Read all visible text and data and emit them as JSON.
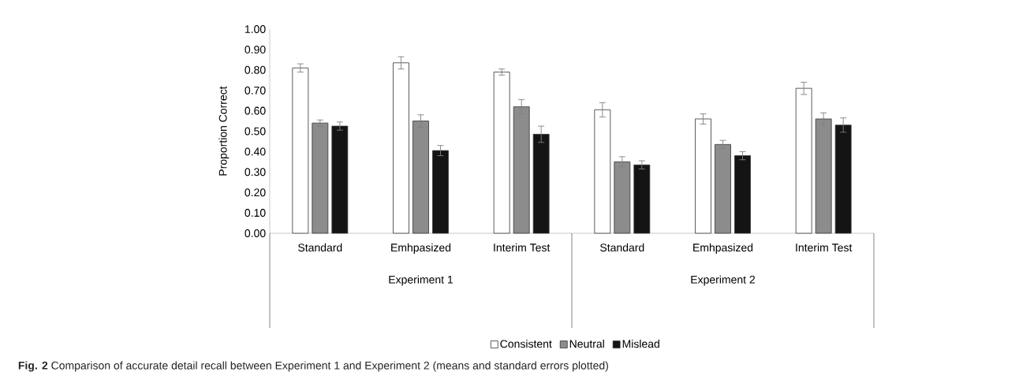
{
  "chart_data": {
    "type": "bar",
    "ylabel": "Proportion Correct",
    "categories": [
      "Standard",
      "Emhpasized",
      "Interim Test",
      "Standard",
      "Emhpasized",
      "Interim Test"
    ],
    "series": [
      {
        "name": "Consistent",
        "color": "#ffffff",
        "values": [
          0.81,
          0.835,
          0.79,
          0.605,
          0.56,
          0.71
        ],
        "errors": [
          0.02,
          0.03,
          0.015,
          0.035,
          0.025,
          0.03
        ]
      },
      {
        "name": "Neutral",
        "color": "#8c8c8c",
        "values": [
          0.54,
          0.55,
          0.62,
          0.35,
          0.435,
          0.56
        ],
        "errors": [
          0.015,
          0.03,
          0.035,
          0.025,
          0.02,
          0.03
        ]
      },
      {
        "name": "Mislead",
        "color": "#141414",
        "values": [
          0.525,
          0.405,
          0.485,
          0.335,
          0.38,
          0.53
        ],
        "errors": [
          0.02,
          0.025,
          0.04,
          0.02,
          0.02,
          0.035
        ]
      }
    ],
    "ylim": [
      0,
      1
    ],
    "yticks": [
      {
        "value": 0,
        "label": "0.00"
      },
      {
        "value": 0.1,
        "label": "0.10"
      },
      {
        "value": 0.2,
        "label": "0.20"
      },
      {
        "value": 0.3,
        "label": "0.30"
      },
      {
        "value": 0.4,
        "label": "0.40"
      },
      {
        "value": 0.5,
        "label": "0.50"
      },
      {
        "value": 0.6,
        "label": "0.60"
      },
      {
        "value": 0.7,
        "label": "0.70"
      },
      {
        "value": 0.8,
        "label": "0.80"
      },
      {
        "value": 0.9,
        "label": "0.90"
      },
      {
        "value": 1,
        "label": "1.00"
      }
    ],
    "legend": "bottom",
    "annotations": [
      "Experiment 1",
      "Experiment 2",
      "**Fig. 2** Comparison of accurate detail recall between Experiment 1 and Experiment 2 (means and standard errors plotted)"
    ]
  }
}
